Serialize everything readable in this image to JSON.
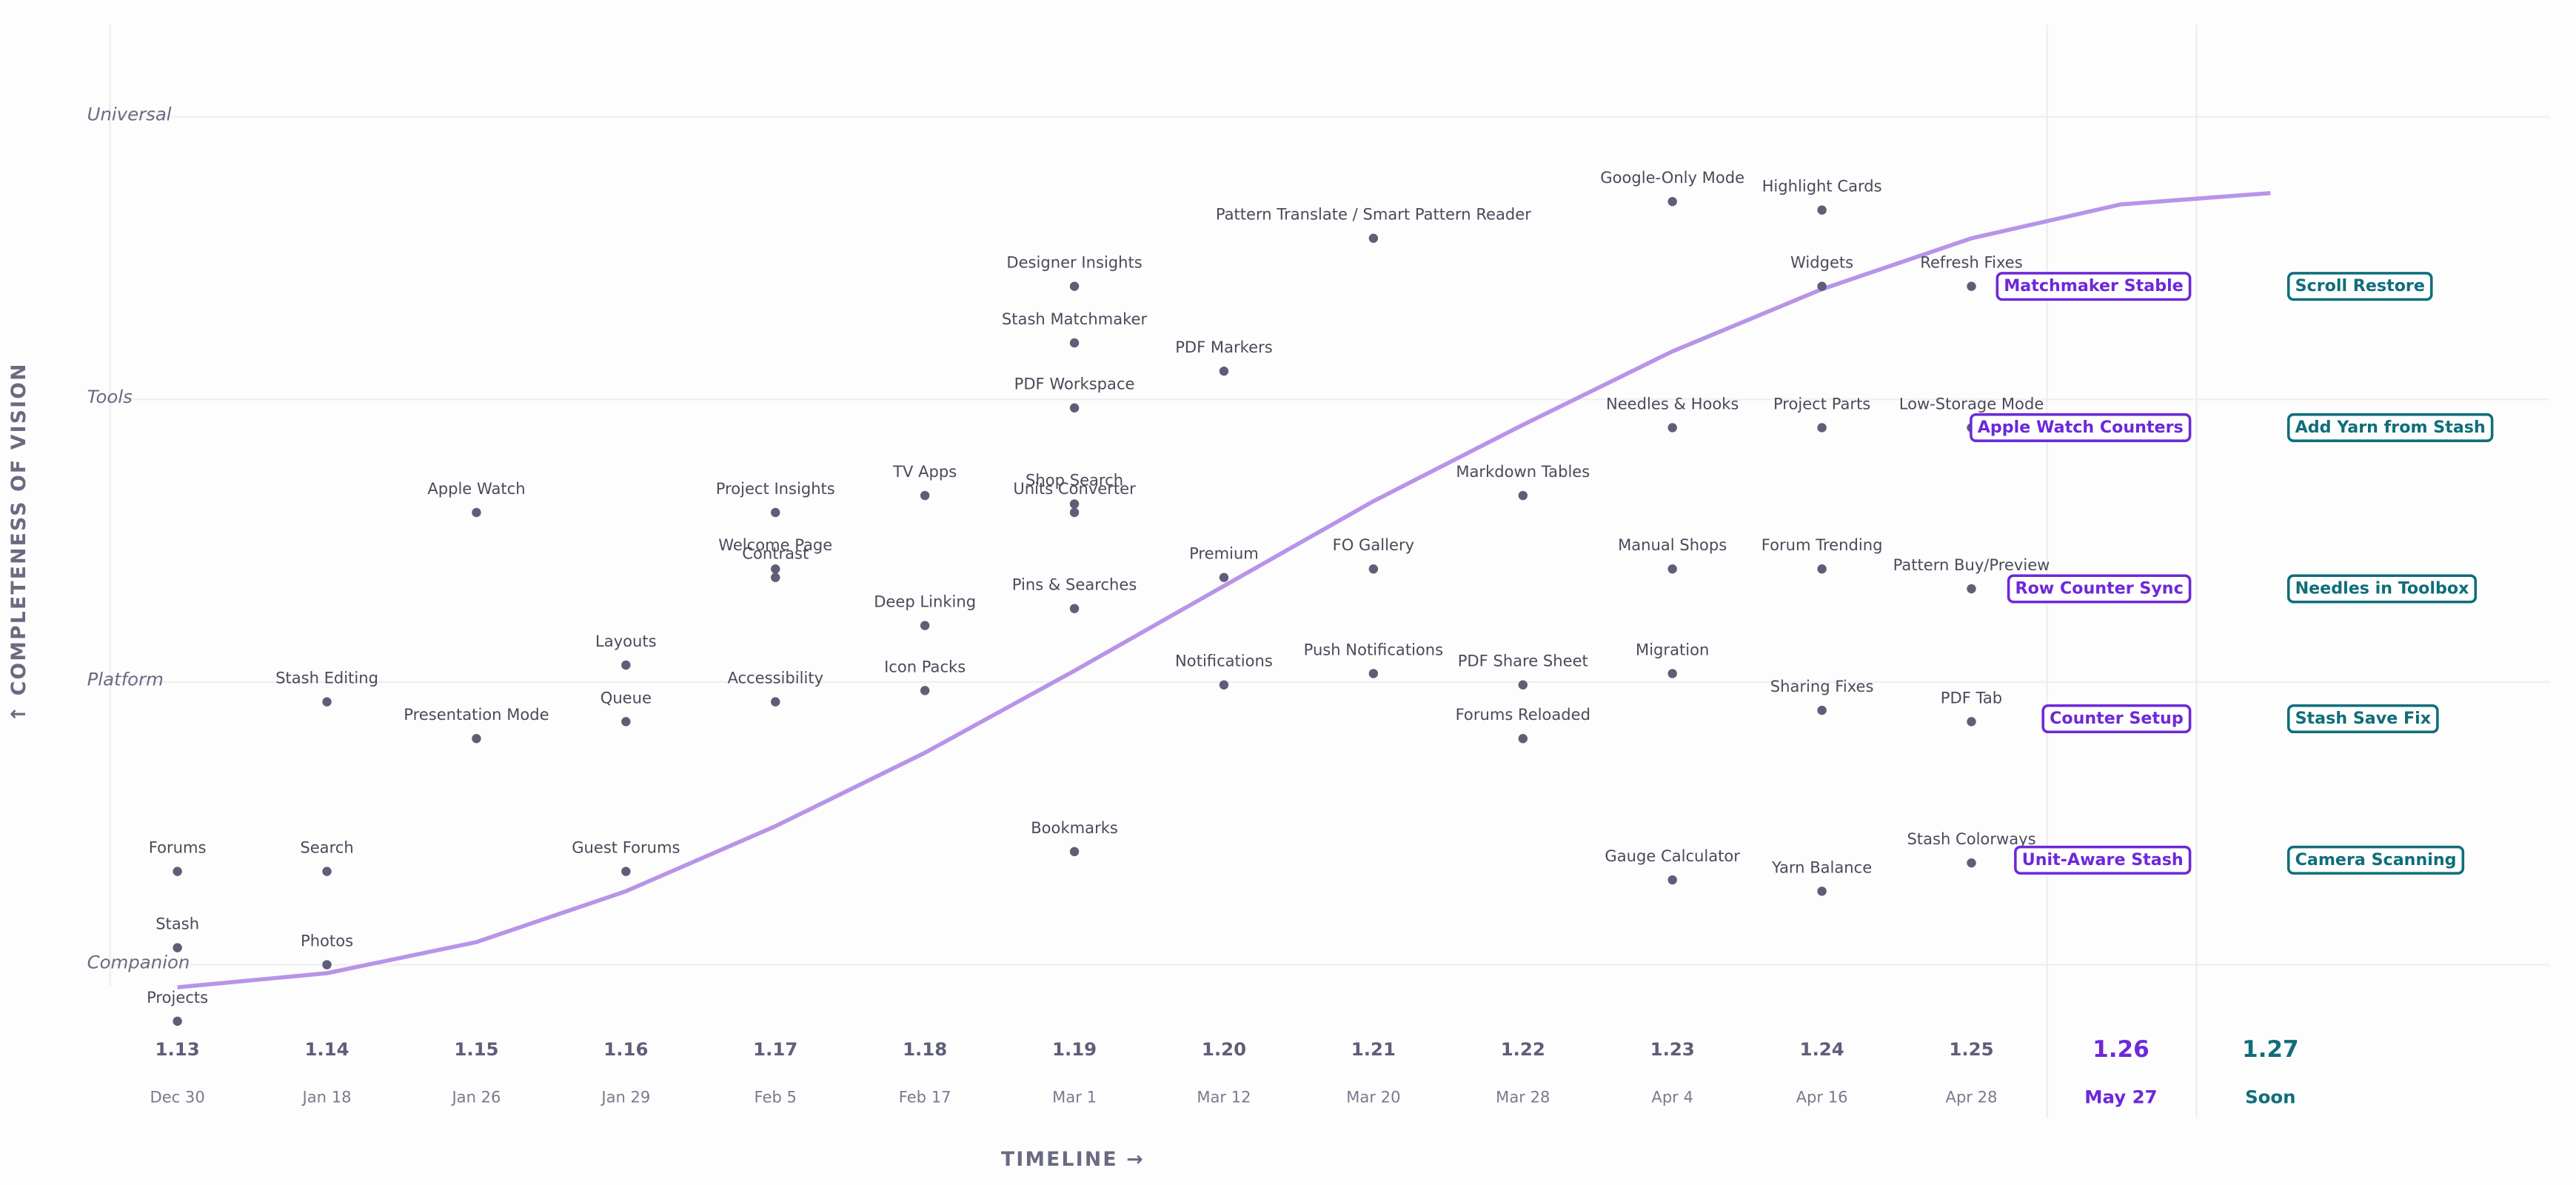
{
  "chart_data": {
    "type": "scatter",
    "ylabel": "↑ COMPLETENESS OF VISION",
    "xlabel": "TIMELINE  →",
    "ylim": [
      -0.25,
      3.3
    ],
    "yticks": [
      {
        "value": 0,
        "label": "Companion"
      },
      {
        "value": 1,
        "label": "Platform"
      },
      {
        "value": 2,
        "label": "Tools"
      },
      {
        "value": 3,
        "label": "Universal"
      }
    ],
    "grid": true,
    "dot_color": "#5e5e78",
    "vision_curve": {
      "color": "#b794e8",
      "values": [
        -0.08,
        -0.03,
        0.08,
        0.26,
        0.49,
        0.75,
        1.04,
        1.34,
        1.64,
        1.91,
        2.17,
        2.39,
        2.57,
        2.69,
        2.73
      ]
    },
    "releases": [
      {
        "version": "1.13",
        "date": "Dec 30",
        "features": [
          {
            "name": "Forums",
            "y": 0.33
          },
          {
            "name": "Stash",
            "y": 0.06
          },
          {
            "name": "Projects",
            "y": -0.2
          }
        ]
      },
      {
        "version": "1.14",
        "date": "Jan 18",
        "features": [
          {
            "name": "Stash Editing",
            "y": 0.93
          },
          {
            "name": "Search",
            "y": 0.33
          },
          {
            "name": "Photos",
            "y": 0
          }
        ]
      },
      {
        "version": "1.15",
        "date": "Jan 26",
        "features": [
          {
            "name": "Apple Watch",
            "y": 1.6
          },
          {
            "name": "Presentation Mode",
            "y": 0.8
          }
        ]
      },
      {
        "version": "1.16",
        "date": "Jan 29",
        "features": [
          {
            "name": "Layouts",
            "y": 1.06
          },
          {
            "name": "Queue",
            "y": 0.86
          },
          {
            "name": "Guest Forums",
            "y": 0.33
          }
        ]
      },
      {
        "version": "1.17",
        "date": "Feb 5",
        "features": [
          {
            "name": "Project Insights",
            "y": 1.6
          },
          {
            "name": "Welcome Page",
            "y": 1.4
          },
          {
            "name": "Contrast",
            "y": 1.37
          },
          {
            "name": "Accessibility",
            "y": 0.93
          }
        ]
      },
      {
        "version": "1.18",
        "date": "Feb 17",
        "features": [
          {
            "name": "TV Apps",
            "y": 1.66
          },
          {
            "name": "Deep Linking",
            "y": 1.2
          },
          {
            "name": "Icon Packs",
            "y": 0.97
          }
        ]
      },
      {
        "version": "1.19",
        "date": "Mar 1",
        "features": [
          {
            "name": "Designer Insights",
            "y": 2.4
          },
          {
            "name": "Stash Matchmaker",
            "y": 2.2
          },
          {
            "name": "PDF Workspace",
            "y": 1.97
          },
          {
            "name": "Shop Search",
            "y": 1.63
          },
          {
            "name": "Units Converter",
            "y": 1.6
          },
          {
            "name": "Pins & Searches",
            "y": 1.26
          },
          {
            "name": "Bookmarks",
            "y": 0.4
          }
        ]
      },
      {
        "version": "1.20",
        "date": "Mar 12",
        "features": [
          {
            "name": "PDF Markers",
            "y": 2.1
          },
          {
            "name": "Premium",
            "y": 1.37
          },
          {
            "name": "Notifications",
            "y": 0.99
          }
        ]
      },
      {
        "version": "1.21",
        "date": "Mar 20",
        "features": [
          {
            "name": "Pattern Translate / Smart Pattern Reader",
            "y": 2.57
          },
          {
            "name": "FO Gallery",
            "y": 1.4
          },
          {
            "name": "Push Notifications",
            "y": 1.03
          }
        ]
      },
      {
        "version": "1.22",
        "date": "Mar 28",
        "features": [
          {
            "name": "Markdown Tables",
            "y": 1.66
          },
          {
            "name": "PDF Share Sheet",
            "y": 0.99
          },
          {
            "name": "Forums Reloaded",
            "y": 0.8
          }
        ]
      },
      {
        "version": "1.23",
        "date": "Apr 4",
        "features": [
          {
            "name": "Google-Only Mode",
            "y": 2.7
          },
          {
            "name": "Needles & Hooks",
            "y": 1.9
          },
          {
            "name": "Manual Shops",
            "y": 1.4
          },
          {
            "name": "Migration",
            "y": 1.03
          },
          {
            "name": "Gauge Calculator",
            "y": 0.3
          }
        ]
      },
      {
        "version": "1.24",
        "date": "Apr 16",
        "features": [
          {
            "name": "Highlight Cards",
            "y": 2.67
          },
          {
            "name": "Widgets",
            "y": 2.4
          },
          {
            "name": "Project Parts",
            "y": 1.9
          },
          {
            "name": "Forum Trending",
            "y": 1.4
          },
          {
            "name": "Sharing Fixes",
            "y": 0.9
          },
          {
            "name": "Yarn Balance",
            "y": 0.26
          }
        ]
      },
      {
        "version": "1.25",
        "date": "Apr 28",
        "features": [
          {
            "name": "Refresh Fixes",
            "y": 2.4
          },
          {
            "name": "Low-Storage Mode",
            "y": 1.9
          },
          {
            "name": "Pattern Buy/Preview",
            "y": 1.33
          },
          {
            "name": "PDF Tab",
            "y": 0.86
          },
          {
            "name": "Stash Colorways",
            "y": 0.36
          }
        ]
      },
      {
        "version": "1.26",
        "date": "May 27",
        "color": "#6d28d9",
        "features": [
          {
            "name": "Matchmaker Stable",
            "y": 2.4
          },
          {
            "name": "Apple Watch Counters",
            "y": 1.9
          },
          {
            "name": "Row Counter Sync",
            "y": 1.33
          },
          {
            "name": "Counter Setup",
            "y": 0.87
          },
          {
            "name": "Unit-Aware Stash",
            "y": 0.37
          }
        ]
      },
      {
        "version": "1.27",
        "date": "Soon",
        "color": "#0f6e7a",
        "features": [
          {
            "name": "Scroll Restore",
            "y": 2.4
          },
          {
            "name": "Add Yarn from Stash",
            "y": 1.9
          },
          {
            "name": "Needles in Toolbox",
            "y": 1.33
          },
          {
            "name": "Stash Save Fix",
            "y": 0.87
          },
          {
            "name": "Camera Scanning",
            "y": 0.37
          }
        ]
      }
    ]
  }
}
